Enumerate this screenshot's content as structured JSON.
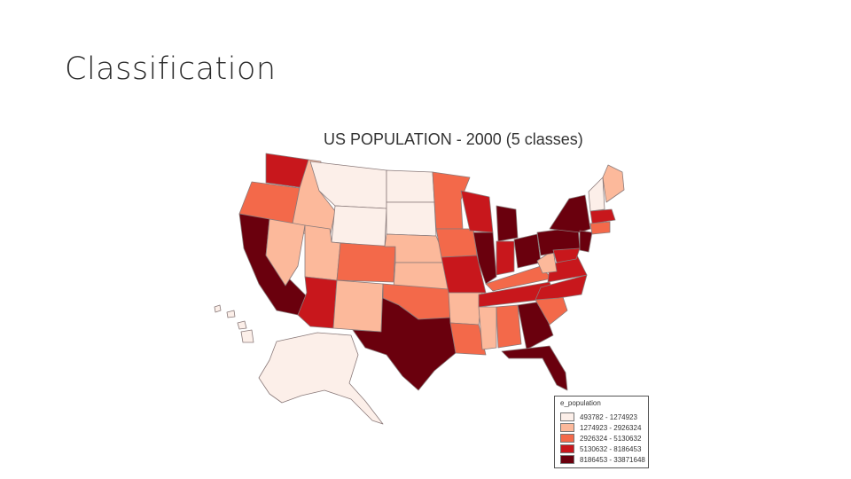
{
  "slide": {
    "title": "Classification"
  },
  "map": {
    "title": "US POPULATION - 2000 (5 classes)",
    "legend": {
      "title": "e_population",
      "classes": [
        {
          "label": "493782 - 1274923",
          "color": "#fcefe9"
        },
        {
          "label": "1274923 - 2926324",
          "color": "#fcb99b"
        },
        {
          "label": "2926324 - 5130632",
          "color": "#f3694a"
        },
        {
          "label": "5130632 - 8186453",
          "color": "#c8171c"
        },
        {
          "label": "8186453 - 33871648",
          "color": "#6a000d"
        }
      ]
    }
  }
}
